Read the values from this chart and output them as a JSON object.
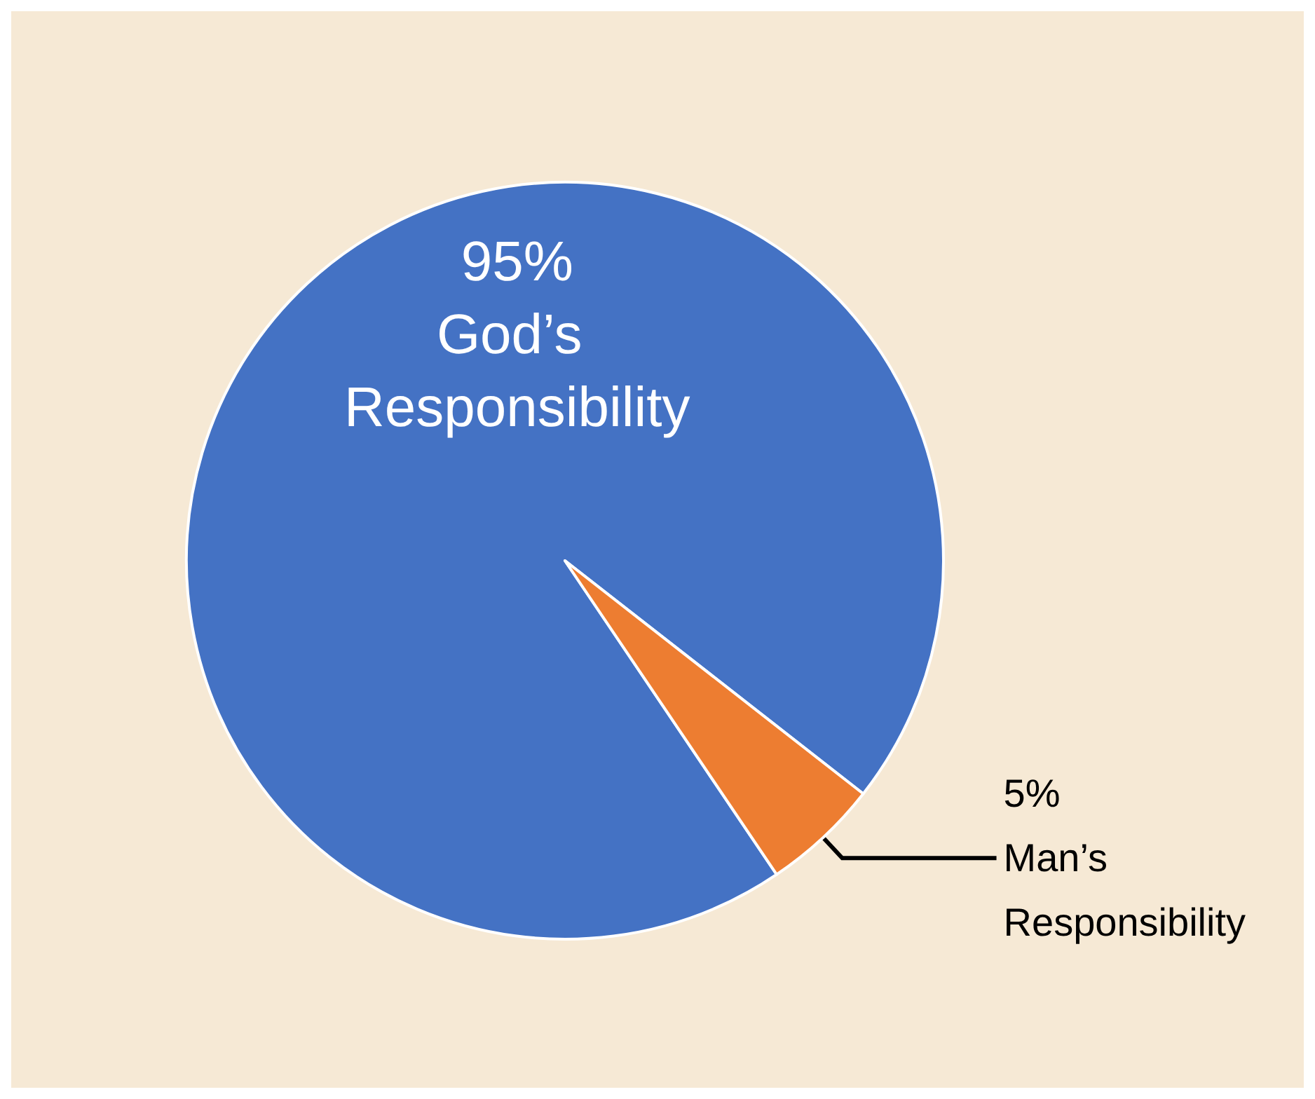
{
  "chart_data": {
    "type": "pie",
    "categories": [
      "God’s Responsibility",
      "Man’s Responsibility"
    ],
    "values": [
      95,
      5
    ],
    "colors": [
      "#4472c4",
      "#ed7d31"
    ],
    "value_labels": [
      "95%",
      "5%"
    ],
    "legend": false
  }
}
